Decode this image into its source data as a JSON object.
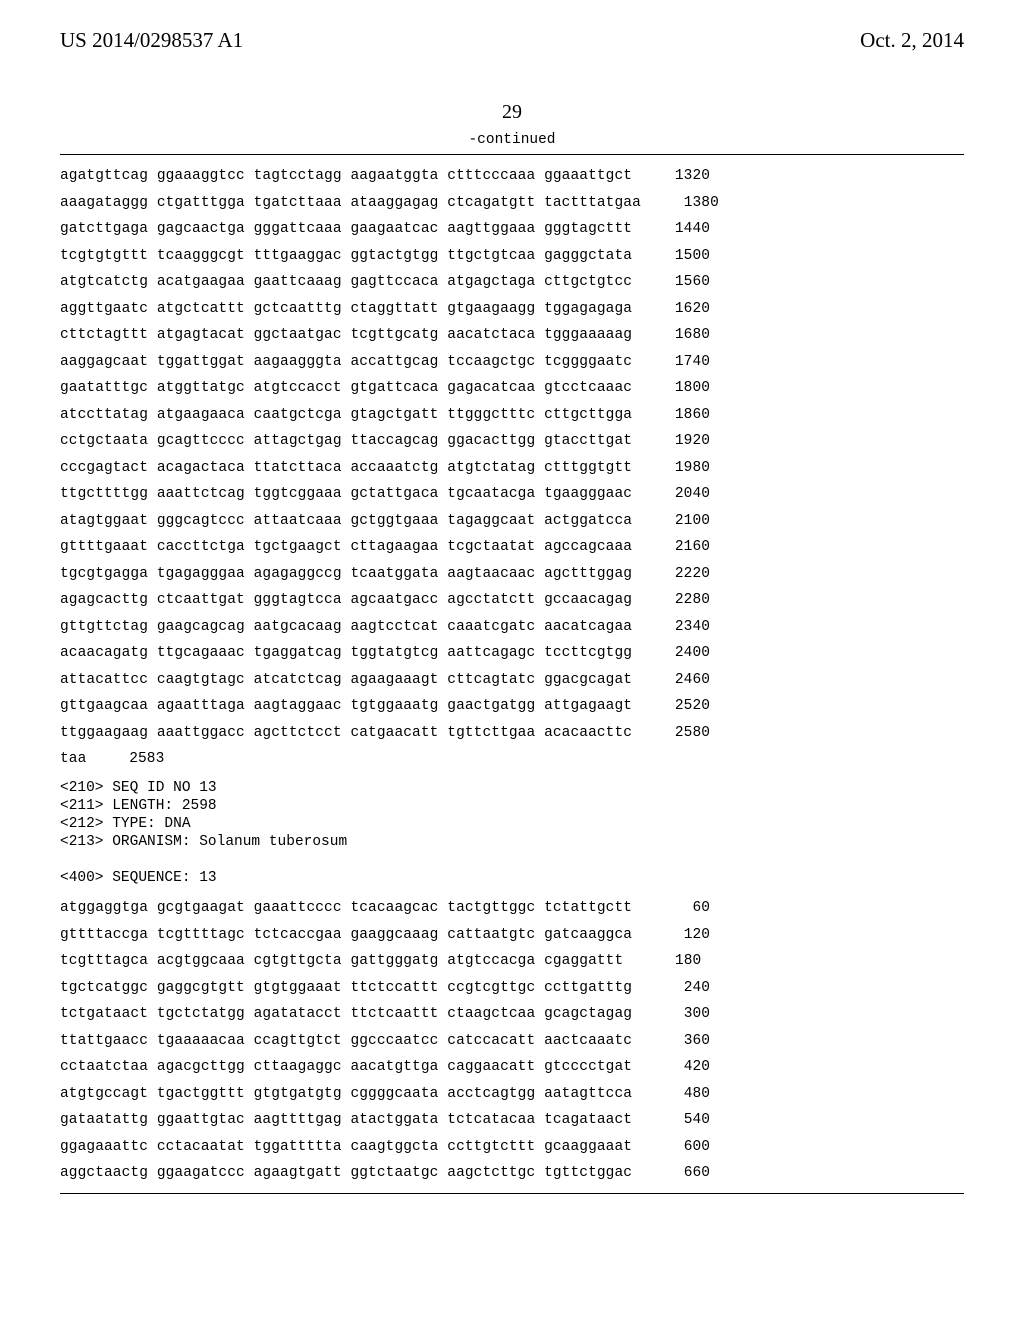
{
  "header": {
    "left": "US 2014/0298537 A1",
    "right": "Oct. 2, 2014"
  },
  "page_number": "29",
  "continued_label": "-continued",
  "block1": {
    "rows": [
      {
        "seq": "agatgttcag ggaaaggtcc tagtcctagg aagaatggta ctttcccaaa ggaaattgct",
        "num": "1320"
      },
      {
        "seq": "aaagataggg ctgatttgga tgatcttaaa ataaggagag ctcagatgtt tactttatgaa",
        "num": "1380"
      },
      {
        "seq": "gatcttgaga gagcaactga gggattcaaa gaagaatcac aagttggaaa gggtagcttt",
        "num": "1440"
      },
      {
        "seq": "tcgtgtgttt tcaagggcgt tttgaaggac ggtactgtgg ttgctgtcaa gagggctata",
        "num": "1500"
      },
      {
        "seq": "atgtcatctg acatgaagaa gaattcaaag gagttccaca atgagctaga cttgctgtcc",
        "num": "1560"
      },
      {
        "seq": "aggttgaatc atgctcattt gctcaatttg ctaggttatt gtgaagaagg tggagagaga",
        "num": "1620"
      },
      {
        "seq": "cttctagttt atgagtacat ggctaatgac tcgttgcatg aacatctaca tgggaaaaag",
        "num": "1680"
      },
      {
        "seq": "aaggagcaat tggattggat aagaagggta accattgcag tccaagctgc tcggggaatc",
        "num": "1740"
      },
      {
        "seq": "gaatatttgc atggttatgc atgtccacct gtgattcaca gagacatcaa gtcctcaaac",
        "num": "1800"
      },
      {
        "seq": "atccttatag atgaagaaca caatgctcga gtagctgatt ttgggctttc cttgcttgga",
        "num": "1860"
      },
      {
        "seq": "cctgctaata gcagttcccc attagctgag ttaccagcag ggacacttgg gtaccttgat",
        "num": "1920"
      },
      {
        "seq": "cccgagtact acagactaca ttatcttaca accaaatctg atgtctatag ctttggtgtt",
        "num": "1980"
      },
      {
        "seq": "ttgcttttgg aaattctcag tggtcggaaa gctattgaca tgcaatacga tgaagggaac",
        "num": "2040"
      },
      {
        "seq": "atagtggaat gggcagtccc attaatcaaa gctggtgaaa tagaggcaat actggatcca",
        "num": "2100"
      },
      {
        "seq": "gttttgaaat caccttctga tgctgaagct cttagaagaa tcgctaatat agccagcaaa",
        "num": "2160"
      },
      {
        "seq": "tgcgtgagga tgagagggaa agagaggccg tcaatggata aagtaacaac agctttggag",
        "num": "2220"
      },
      {
        "seq": "agagcacttg ctcaattgat gggtagtcca agcaatgacc agcctatctt gccaacagag",
        "num": "2280"
      },
      {
        "seq": "gttgttctag gaagcagcag aatgcacaag aagtcctcat caaatcgatc aacatcagaa",
        "num": "2340"
      },
      {
        "seq": "acaacagatg ttgcagaaac tgaggatcag tggtatgtcg aattcagagc tccttcgtgg",
        "num": "2400"
      },
      {
        "seq": "attacattcc caagtgtagc atcatctcag agaagaaagt cttcagtatc ggacgcagat",
        "num": "2460"
      },
      {
        "seq": "gttgaagcaa agaatttaga aagtaggaac tgtggaaatg gaactgatgg attgagaagt",
        "num": "2520"
      },
      {
        "seq": "ttggaagaag aaattggacc agcttctcct catgaacatt tgttcttgaa acacaacttc",
        "num": "2580"
      },
      {
        "seq": "taa",
        "num": "2583"
      }
    ]
  },
  "meta": [
    "<210> SEQ ID NO 13",
    "<211> LENGTH: 2598",
    "<212> TYPE: DNA",
    "<213> ORGANISM: Solanum tuberosum",
    "",
    "<400> SEQUENCE: 13"
  ],
  "block2": {
    "rows": [
      {
        "seq": "atggaggtga gcgtgaagat gaaattcccc tcacaagcac tactgttggc tctattgctt",
        "num": "60"
      },
      {
        "seq": "gttttaccga tcgttttagc tctcaccgaa gaaggcaaag cattaatgtc gatcaaggca",
        "num": "120"
      },
      {
        "seq": "tcgtttagca acgtggcaaa cgtgttgcta gattgggatg atgtccacga cgaggattt",
        "num": "180"
      },
      {
        "seq": "tgctcatggc gaggcgtgtt gtgtggaaat ttctccattt ccgtcgttgc ccttgatttg",
        "num": "240"
      },
      {
        "seq": "tctgataact tgctctatgg agatatacct ttctcaattt ctaagctcaa gcagctagag",
        "num": "300"
      },
      {
        "seq": "ttattgaacc tgaaaaacaa ccagttgtct ggcccaatcc catccacatt aactcaaatc",
        "num": "360"
      },
      {
        "seq": "cctaatctaa agacgcttgg cttaagaggc aacatgttga caggaacatt gtcccctgat",
        "num": "420"
      },
      {
        "seq": "atgtgccagt tgactggttt gtgtgatgtg cggggcaata acctcagtgg aatagttcca",
        "num": "480"
      },
      {
        "seq": "gataatattg ggaattgtac aagttttgag atactggata tctcatacaa tcagataact",
        "num": "540"
      },
      {
        "seq": "ggagaaattc cctacaatat tggattttta caagtggcta ccttgtcttt gcaaggaaat",
        "num": "600"
      },
      {
        "seq": "aggctaactg ggaagatccc agaagtgatt ggtctaatgc aagctcttgc tgttctggac",
        "num": "660"
      }
    ]
  }
}
